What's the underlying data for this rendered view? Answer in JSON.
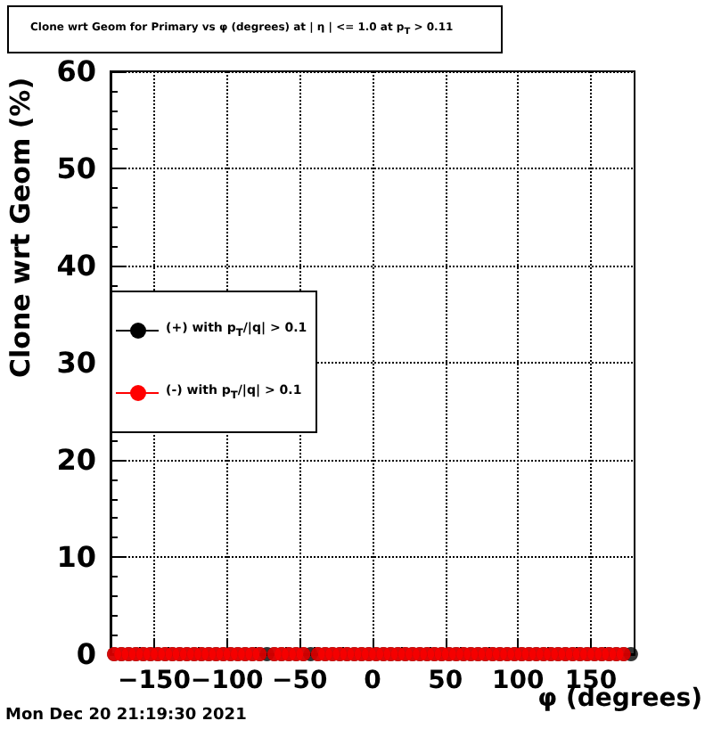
{
  "chart_data": {
    "type": "scatter",
    "title": "Clone wrt Geom for Primary vs φ (degrees) at | η | <= 1.0 at p$_{T}$ > 0.11",
    "xlabel": "φ (degrees)",
    "ylabel": "Clone wrt Geom (%)",
    "x": [
      -177.5,
      -172.5,
      -167.5,
      -162.5,
      -157.5,
      -152.5,
      -147.5,
      -142.5,
      -137.5,
      -132.5,
      -127.5,
      -122.5,
      -117.5,
      -112.5,
      -107.5,
      -102.5,
      -97.5,
      -92.5,
      -87.5,
      -82.5,
      -77.5,
      -72.5,
      -67.5,
      -62.5,
      -57.5,
      -52.5,
      -47.5,
      -42.5,
      -37.5,
      -32.5,
      -27.5,
      -22.5,
      -17.5,
      -12.5,
      -7.5,
      -2.5,
      2.5,
      7.5,
      12.5,
      17.5,
      22.5,
      27.5,
      32.5,
      37.5,
      42.5,
      47.5,
      52.5,
      57.5,
      62.5,
      67.5,
      72.5,
      77.5,
      82.5,
      87.5,
      92.5,
      97.5,
      102.5,
      107.5,
      112.5,
      117.5,
      122.5,
      127.5,
      132.5,
      137.5,
      142.5,
      147.5,
      152.5,
      157.5,
      162.5,
      167.5,
      172.5,
      177.5
    ],
    "series": [
      {
        "name": "(+) with p$_{T}$/|q| > 0.1",
        "color": "#000000",
        "values": [
          0,
          0,
          0,
          0,
          0,
          0,
          0,
          0,
          0,
          0,
          0,
          0,
          0,
          0,
          0,
          0,
          0,
          0,
          0,
          0,
          0,
          0,
          0,
          0,
          0,
          0,
          0,
          0,
          0,
          0,
          0,
          0,
          0,
          0,
          0,
          0,
          0,
          0,
          0,
          0,
          0,
          0,
          0,
          0,
          0,
          0,
          0,
          0,
          0,
          0,
          0,
          0,
          0,
          0,
          0,
          0,
          0,
          0,
          0,
          0,
          0,
          0,
          0,
          0,
          0,
          0,
          0,
          0,
          0,
          0,
          0,
          0
        ]
      },
      {
        "name": "(-) with p$_{T}$/|q| > 0.1",
        "color": "#ff0000",
        "values": [
          0,
          0,
          0,
          0,
          0,
          0,
          0,
          0,
          0,
          0,
          0,
          0,
          0,
          0,
          0,
          0,
          0,
          0,
          0,
          0,
          0,
          null,
          0,
          0,
          0,
          0,
          0,
          null,
          0,
          0,
          0,
          0,
          0,
          0,
          0,
          0,
          0,
          0,
          0,
          0,
          0,
          0,
          0,
          0,
          0,
          0,
          0,
          0,
          0,
          0,
          0,
          0,
          0,
          0,
          0,
          0,
          0,
          0,
          0,
          0,
          0,
          0,
          0,
          0,
          0,
          0,
          0,
          0,
          0,
          0,
          0,
          null
        ]
      }
    ],
    "xlim": [
      -180,
      180
    ],
    "xticks": [
      -150,
      -100,
      -50,
      0,
      50,
      100,
      150
    ],
    "ylim": [
      0,
      60
    ],
    "yticks": [
      0,
      10,
      20,
      30,
      40,
      50,
      60
    ],
    "grid": true,
    "legend": "left",
    "marker": "circle",
    "annotations": [
      "Mon Dec 20 21:19:30 2021"
    ]
  }
}
